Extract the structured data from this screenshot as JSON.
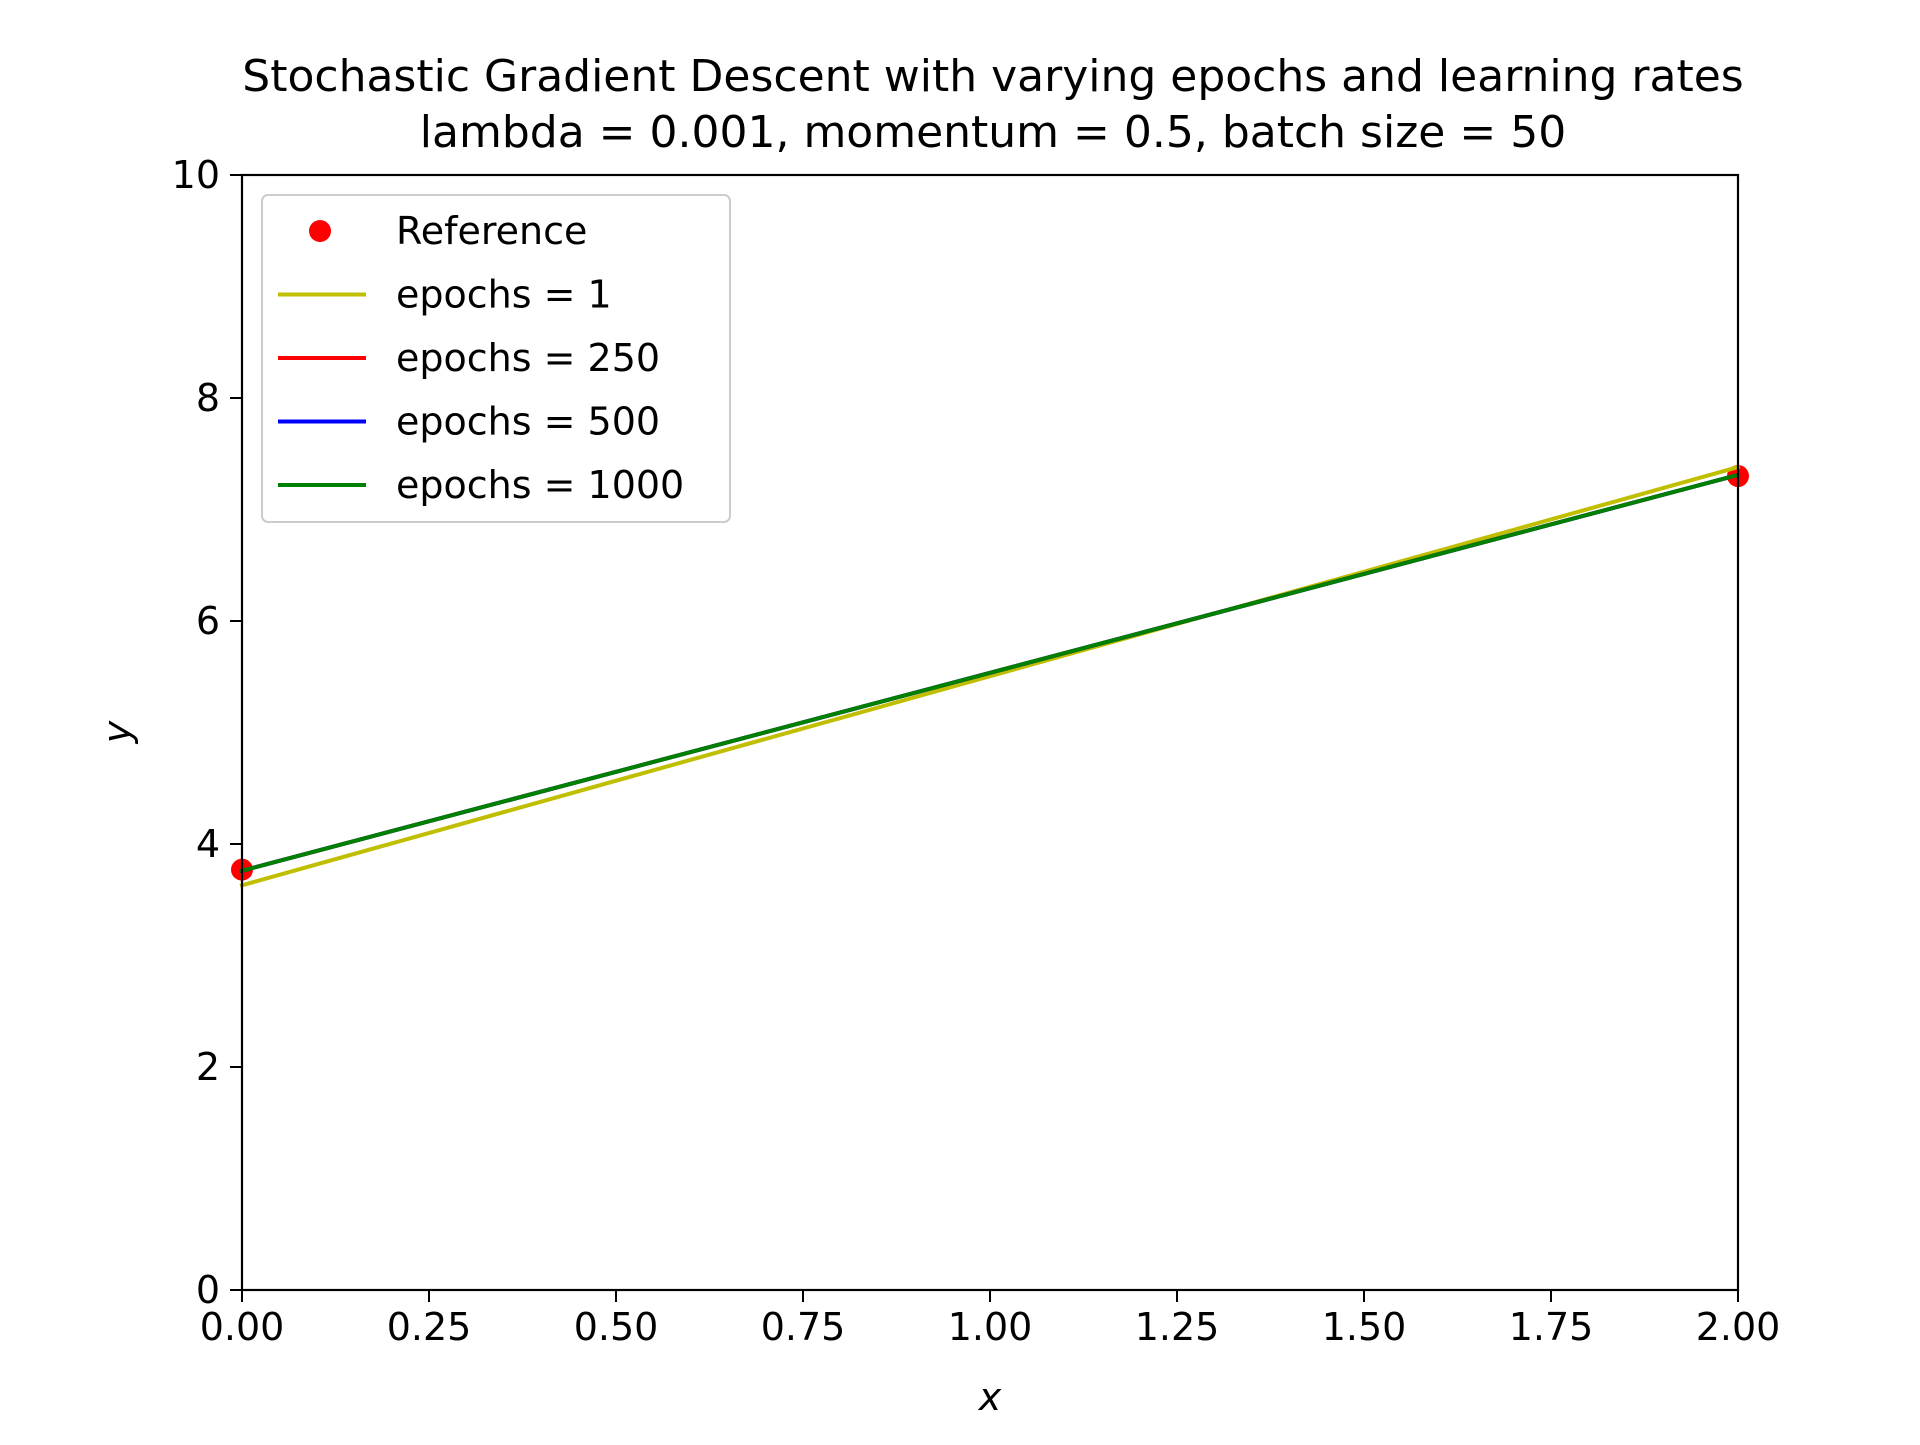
{
  "chart_data": {
    "type": "line",
    "title": "Stochastic Gradient Descent with varying epochs and learning rates",
    "subtitle": "lambda = 0.001, momentum = 0.5, batch size = 50",
    "xlabel": "x",
    "ylabel": "y",
    "xlim": [
      0.0,
      2.0
    ],
    "ylim": [
      0,
      10
    ],
    "x_ticks": [
      "0.00",
      "0.25",
      "0.50",
      "0.75",
      "1.00",
      "1.25",
      "1.50",
      "1.75",
      "2.00"
    ],
    "y_ticks": [
      "0",
      "2",
      "4",
      "6",
      "8",
      "10"
    ],
    "grid": false,
    "legend_position": "top-left",
    "series": [
      {
        "name": "Reference",
        "kind": "points",
        "color": "#ff0000",
        "x": [
          0.0,
          2.0
        ],
        "y": [
          3.77,
          7.3
        ]
      },
      {
        "name": "epochs = 1",
        "kind": "line",
        "color": "#bfbf00",
        "x": [
          0.0,
          2.0
        ],
        "y": [
          3.63,
          7.38
        ]
      },
      {
        "name": "epochs = 250",
        "kind": "line",
        "color": "#ff0000",
        "x": [
          0.0,
          2.0
        ],
        "y": [
          3.76,
          7.31
        ]
      },
      {
        "name": "epochs = 500",
        "kind": "line",
        "color": "#0000ff",
        "x": [
          0.0,
          2.0
        ],
        "y": [
          3.76,
          7.31
        ]
      },
      {
        "name": "epochs = 1000",
        "kind": "line",
        "color": "#008000",
        "x": [
          0.0,
          2.0
        ],
        "y": [
          3.76,
          7.31
        ]
      }
    ]
  }
}
